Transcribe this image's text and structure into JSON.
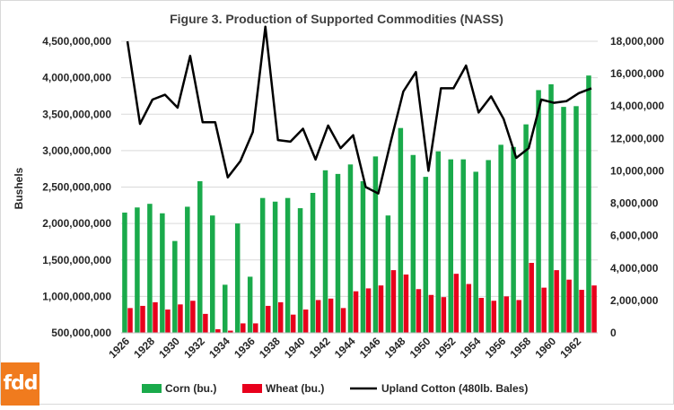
{
  "logo_text": "fdd",
  "colors": {
    "corn": "#1aaa4b",
    "wheat": "#e8001c",
    "cotton": "#000000",
    "grid": "#d9d9d9",
    "logo_bg": "#f07b1e"
  },
  "chart_data": {
    "type": "bar",
    "title": "Figure 3. Production of Supported Commodities (NASS)",
    "ylabel": "Bushels",
    "ylabel_right": "",
    "ylim": [
      500000000,
      4500000000
    ],
    "ylim_right": [
      0,
      18000000
    ],
    "y_ticks": [
      "500,000,000",
      "1,000,000,000",
      "1,500,000,000",
      "2,000,000,000",
      "2,500,000,000",
      "3,000,000,000",
      "3,500,000,000",
      "4,000,000,000",
      "4,500,000,000"
    ],
    "y_ticks_right": [
      "0",
      "2,000,000",
      "4,000,000",
      "6,000,000",
      "8,000,000",
      "10,000,000",
      "12,000,000",
      "14,000,000",
      "16,000,000",
      "18,000,000"
    ],
    "categories": [
      "1926",
      "1927",
      "1928",
      "1929",
      "1930",
      "1931",
      "1932",
      "1933",
      "1934",
      "1935",
      "1936",
      "1937",
      "1938",
      "1939",
      "1940",
      "1941",
      "1942",
      "1943",
      "1944",
      "1945",
      "1946",
      "1947",
      "1948",
      "1949",
      "1950",
      "1951",
      "1952",
      "1953",
      "1954",
      "1955",
      "1956",
      "1957",
      "1958",
      "1959",
      "1960",
      "1961",
      "1962",
      "1963"
    ],
    "x_tick_labels": [
      "1926",
      "1928",
      "1930",
      "1932",
      "1934",
      "1936",
      "1938",
      "1940",
      "1942",
      "1944",
      "1946",
      "1948",
      "1950",
      "1952",
      "1954",
      "1956",
      "1958",
      "1960",
      "1962"
    ],
    "legend_position": "bottom",
    "series": [
      {
        "name": "Corn (bu.)",
        "type": "bar",
        "axis": "left",
        "values": [
          2150000000,
          2220000000,
          2270000000,
          2140000000,
          1760000000,
          2230000000,
          2580000000,
          2110000000,
          1160000000,
          2000000000,
          1270000000,
          2350000000,
          2300000000,
          2350000000,
          2210000000,
          2420000000,
          2730000000,
          2680000000,
          2810000000,
          2580000000,
          2920000000,
          2110000000,
          3310000000,
          2940000000,
          2640000000,
          2990000000,
          2880000000,
          2880000000,
          2710000000,
          2870000000,
          3080000000,
          3050000000,
          3360000000,
          3830000000,
          3910000000,
          3600000000,
          3610000000,
          4030000000
        ]
      },
      {
        "name": "Wheat (bu.)",
        "type": "bar",
        "axis": "left",
        "values": [
          840000000,
          870000000,
          920000000,
          820000000,
          890000000,
          940000000,
          760000000,
          550000000,
          530000000,
          630000000,
          630000000,
          870000000,
          920000000,
          750000000,
          820000000,
          950000000,
          970000000,
          840000000,
          1070000000,
          1110000000,
          1150000000,
          1360000000,
          1300000000,
          1100000000,
          1020000000,
          990000000,
          1310000000,
          1170000000,
          980000000,
          940000000,
          1000000000,
          950000000,
          1460000000,
          1120000000,
          1360000000,
          1230000000,
          1090000000,
          1150000000
        ]
      },
      {
        "name": "Upland Cotton (480lb. Bales)",
        "type": "line",
        "axis": "right",
        "values": [
          18000000,
          12900000,
          14400000,
          14700000,
          13900000,
          17100000,
          13000000,
          13000000,
          9600000,
          10600000,
          12400000,
          18900000,
          11900000,
          11800000,
          12600000,
          10700000,
          12800000,
          11400000,
          12200000,
          9000000,
          8600000,
          11800000,
          14900000,
          16100000,
          10000000,
          15100000,
          15100000,
          16500000,
          13600000,
          14600000,
          13200000,
          10800000,
          11400000,
          14400000,
          14200000,
          14300000,
          14800000,
          15100000
        ]
      }
    ]
  }
}
